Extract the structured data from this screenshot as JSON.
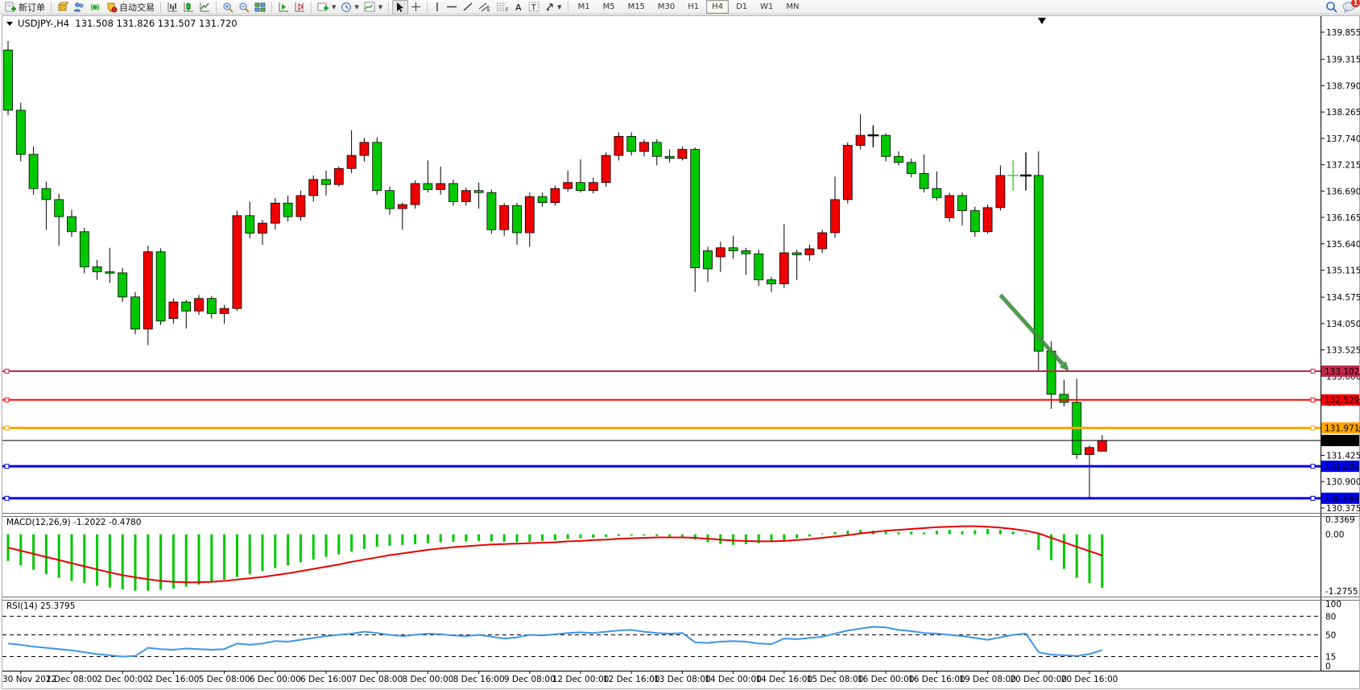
{
  "toolbar": {
    "new_order_label": "新订单",
    "autotrading_label": "自动交易",
    "timeframes": [
      "M1",
      "M5",
      "M15",
      "M30",
      "H1",
      "H4",
      "D1",
      "W1",
      "MN"
    ],
    "active_timeframe": "H4",
    "notification_count": "1"
  },
  "chart": {
    "title_symbol": "USDJPY-,H4",
    "title_ohlc": "131.508 131.826 131.507 131.720"
  },
  "chart_data": {
    "type": "candlestick",
    "symbol": "USDJPY",
    "timeframe": "H4",
    "color_convention": "green=down red=up",
    "ylim_main": [
      130.375,
      139.855
    ],
    "grid": false,
    "x_labels": [
      "30 Nov 2022",
      "1 Dec 08:00",
      "2 Dec 00:00",
      "2 Dec 16:00",
      "5 Dec 08:00",
      "6 Dec 00:00",
      "6 Dec 16:00",
      "7 Dec 08:00",
      "8 Dec 00:00",
      "8 Dec 16:00",
      "9 Dec 08:00",
      "12 Dec 00:00",
      "12 Dec 16:00",
      "13 Dec 08:00",
      "14 Dec 00:00",
      "14 Dec 16:00",
      "15 Dec 08:00",
      "16 Dec 00:00",
      "16 Dec 16:00",
      "19 Dec 08:00",
      "20 Dec 00:00",
      "20 Dec 16:00"
    ],
    "price_axis_ticks": [
      139.855,
      139.315,
      138.79,
      138.265,
      137.74,
      137.215,
      136.69,
      136.165,
      135.64,
      135.115,
      134.575,
      134.05,
      133.525,
      133.0,
      132.475,
      131.95,
      131.425,
      130.9,
      130.375
    ],
    "candles": [
      [
        139.5,
        139.68,
        138.2,
        138.3
      ],
      [
        138.3,
        138.45,
        137.28,
        137.42
      ],
      [
        137.42,
        137.58,
        136.62,
        136.74
      ],
      [
        136.74,
        136.88,
        135.92,
        136.52
      ],
      [
        136.52,
        136.64,
        135.6,
        136.18
      ],
      [
        136.18,
        136.32,
        135.78,
        135.88
      ],
      [
        135.88,
        135.96,
        135.05,
        135.18
      ],
      [
        135.18,
        135.32,
        134.92,
        135.08
      ],
      [
        135.08,
        135.56,
        134.86,
        135.06
      ],
      [
        135.06,
        135.16,
        134.48,
        134.58
      ],
      [
        134.58,
        134.68,
        133.84,
        133.94
      ],
      [
        133.94,
        135.6,
        133.62,
        135.48
      ],
      [
        135.48,
        135.55,
        134.02,
        134.1
      ],
      [
        134.15,
        134.55,
        134.05,
        134.48
      ],
      [
        134.48,
        134.52,
        133.95,
        134.3
      ],
      [
        134.3,
        134.62,
        134.22,
        134.55
      ],
      [
        134.55,
        134.6,
        134.15,
        134.25
      ],
      [
        134.25,
        134.42,
        134.05,
        134.35
      ],
      [
        134.35,
        136.3,
        134.3,
        136.2
      ],
      [
        136.2,
        136.48,
        135.75,
        135.85
      ],
      [
        135.85,
        136.12,
        135.62,
        136.05
      ],
      [
        136.05,
        136.55,
        135.92,
        136.45
      ],
      [
        136.45,
        136.6,
        136.08,
        136.18
      ],
      [
        136.18,
        136.7,
        136.1,
        136.6
      ],
      [
        136.6,
        137.0,
        136.48,
        136.92
      ],
      [
        136.92,
        137.1,
        136.6,
        136.82
      ],
      [
        136.82,
        137.18,
        136.78,
        137.14
      ],
      [
        137.14,
        137.9,
        137.05,
        137.4
      ],
      [
        137.4,
        137.75,
        137.28,
        137.66
      ],
      [
        137.66,
        137.76,
        136.62,
        136.7
      ],
      [
        136.7,
        136.78,
        136.22,
        136.34
      ],
      [
        136.34,
        136.46,
        135.92,
        136.42
      ],
      [
        136.42,
        136.9,
        136.34,
        136.84
      ],
      [
        136.84,
        137.3,
        136.66,
        136.72
      ],
      [
        136.72,
        137.18,
        136.62,
        136.84
      ],
      [
        136.84,
        136.92,
        136.4,
        136.48
      ],
      [
        136.48,
        136.76,
        136.4,
        136.7
      ],
      [
        136.7,
        136.86,
        136.34,
        136.66
      ],
      [
        136.66,
        136.72,
        135.84,
        135.92
      ],
      [
        135.92,
        136.45,
        135.8,
        136.4
      ],
      [
        136.4,
        136.46,
        135.62,
        135.86
      ],
      [
        135.86,
        136.66,
        135.58,
        136.58
      ],
      [
        136.58,
        136.66,
        136.38,
        136.46
      ],
      [
        136.46,
        136.8,
        136.4,
        136.74
      ],
      [
        136.74,
        137.1,
        136.68,
        136.86
      ],
      [
        136.86,
        137.32,
        136.66,
        136.7
      ],
      [
        136.7,
        136.96,
        136.64,
        136.86
      ],
      [
        136.86,
        137.46,
        136.78,
        137.4
      ],
      [
        137.4,
        137.86,
        137.3,
        137.78
      ],
      [
        137.78,
        137.86,
        137.4,
        137.48
      ],
      [
        137.48,
        137.72,
        137.38,
        137.66
      ],
      [
        137.66,
        137.72,
        137.2,
        137.38
      ],
      [
        137.38,
        137.52,
        137.26,
        137.34
      ],
      [
        137.34,
        137.58,
        137.3,
        137.52
      ],
      [
        137.52,
        137.56,
        134.68,
        135.16
      ],
      [
        135.5,
        135.58,
        134.88,
        135.14
      ],
      [
        135.38,
        135.68,
        135.08,
        135.56
      ],
      [
        135.56,
        135.8,
        135.34,
        135.5
      ],
      [
        135.5,
        135.56,
        135.02,
        135.44
      ],
      [
        135.44,
        135.52,
        134.8,
        134.92
      ],
      [
        134.92,
        134.98,
        134.68,
        134.84
      ],
      [
        134.84,
        136.03,
        134.76,
        135.46
      ],
      [
        135.46,
        135.52,
        134.92,
        135.42
      ],
      [
        135.42,
        135.62,
        135.3,
        135.54
      ],
      [
        135.54,
        135.92,
        135.46,
        135.86
      ],
      [
        135.86,
        136.98,
        135.76,
        136.52
      ],
      [
        136.52,
        137.66,
        136.44,
        137.6
      ],
      [
        137.6,
        138.22,
        137.52,
        137.8
      ],
      [
        137.8,
        138.0,
        137.56,
        137.8,
        "db"
      ],
      [
        137.8,
        137.84,
        137.28,
        137.38
      ],
      [
        137.38,
        137.48,
        137.2,
        137.26
      ],
      [
        137.26,
        137.34,
        136.96,
        137.04
      ],
      [
        137.04,
        137.42,
        136.66,
        136.74
      ],
      [
        136.74,
        137.08,
        136.5,
        136.56
      ],
      [
        136.16,
        136.66,
        136.08,
        136.6
      ],
      [
        136.6,
        136.66,
        136.0,
        136.3
      ],
      [
        136.3,
        136.38,
        135.78,
        135.88
      ],
      [
        135.88,
        136.42,
        135.84,
        136.36
      ],
      [
        136.36,
        137.2,
        136.3,
        137.0
      ],
      [
        137.0,
        137.3,
        136.7,
        137.0,
        "dg"
      ],
      [
        137.0,
        137.46,
        136.7,
        137.0,
        "db"
      ],
      [
        137.0,
        137.48,
        133.09,
        133.5
      ],
      [
        133.5,
        133.7,
        132.35,
        132.64
      ],
      [
        132.64,
        132.93,
        132.4,
        132.48
      ],
      [
        132.48,
        132.95,
        131.35,
        131.44
      ],
      [
        131.44,
        131.62,
        130.56,
        131.58
      ],
      [
        131.508,
        131.826,
        131.507,
        131.72
      ]
    ],
    "price_lines": [
      {
        "price": 133.102,
        "label": "133.102",
        "color": "#C2274B",
        "width": 2,
        "handles": true
      },
      {
        "price": 132.529,
        "label": "132.529",
        "color": "#F40000",
        "width": 2,
        "handles": true
      },
      {
        "price": 131.971,
        "label": "131.971",
        "color": "#FFA500",
        "width": 3,
        "handles": true
      },
      {
        "price": 131.72,
        "label": "131.720",
        "color": "#000000",
        "width": 1,
        "handles": false
      },
      {
        "price": 131.206,
        "label": "131.206",
        "color": "#0000E8",
        "width": 3,
        "handles": true
      },
      {
        "price": 130.569,
        "label": "130.569",
        "color": "#0000E8",
        "width": 3,
        "handles": true
      }
    ],
    "arrow_annotation": {
      "from": {
        "bar": 78.0,
        "price": 134.62
      },
      "to": {
        "bar": 83.4,
        "price": 133.1
      },
      "color": "#3F8F3F"
    },
    "macd": {
      "label": "MACD(12,26,9)",
      "values_label": "-1.2022 -0.4780",
      "axis_labels": [
        0.3369,
        0.0,
        -1.2755
      ],
      "histogram": [
        -0.6,
        -0.7,
        -0.8,
        -0.9,
        -0.98,
        -1.05,
        -1.1,
        -1.16,
        -1.2,
        -1.24,
        -1.27,
        -1.27,
        -1.25,
        -1.22,
        -1.18,
        -1.13,
        -1.08,
        -1.02,
        -0.96,
        -0.9,
        -0.83,
        -0.76,
        -0.7,
        -0.63,
        -0.57,
        -0.51,
        -0.45,
        -0.39,
        -0.33,
        -0.28,
        -0.26,
        -0.24,
        -0.22,
        -0.2,
        -0.18,
        -0.17,
        -0.16,
        -0.15,
        -0.16,
        -0.17,
        -0.18,
        -0.17,
        -0.15,
        -0.13,
        -0.11,
        -0.09,
        -0.08,
        -0.06,
        -0.04,
        -0.03,
        -0.03,
        -0.04,
        -0.05,
        -0.06,
        -0.12,
        -0.18,
        -0.22,
        -0.24,
        -0.22,
        -0.2,
        -0.17,
        -0.13,
        -0.09,
        -0.05,
        0.02,
        0.05,
        0.08,
        0.1,
        0.08,
        0.06,
        0.05,
        0.06,
        0.04,
        0.08,
        0.1,
        0.07,
        0.09,
        0.12,
        0.1,
        0.06,
        0.02,
        -0.35,
        -0.58,
        -0.78,
        -0.98,
        -1.1,
        -1.2022
      ],
      "signal": [
        -0.3,
        -0.37,
        -0.44,
        -0.51,
        -0.58,
        -0.65,
        -0.72,
        -0.79,
        -0.86,
        -0.92,
        -0.97,
        -1.01,
        -1.05,
        -1.07,
        -1.08,
        -1.08,
        -1.07,
        -1.05,
        -1.02,
        -0.99,
        -0.96,
        -0.92,
        -0.88,
        -0.83,
        -0.78,
        -0.73,
        -0.68,
        -0.62,
        -0.57,
        -0.52,
        -0.47,
        -0.43,
        -0.39,
        -0.35,
        -0.32,
        -0.29,
        -0.27,
        -0.25,
        -0.23,
        -0.22,
        -0.21,
        -0.2,
        -0.19,
        -0.18,
        -0.16,
        -0.15,
        -0.13,
        -0.12,
        -0.1,
        -0.09,
        -0.08,
        -0.07,
        -0.07,
        -0.07,
        -0.08,
        -0.1,
        -0.12,
        -0.14,
        -0.15,
        -0.16,
        -0.16,
        -0.15,
        -0.13,
        -0.11,
        -0.08,
        -0.05,
        -0.02,
        0.02,
        0.05,
        0.08,
        0.1,
        0.12,
        0.14,
        0.16,
        0.17,
        0.18,
        0.18,
        0.17,
        0.15,
        0.12,
        0.08,
        0.02,
        -0.08,
        -0.18,
        -0.28,
        -0.38,
        -0.478
      ]
    },
    "rsi": {
      "label": "RSI(14)",
      "value_label": "25.3795",
      "axis_labels": [
        100,
        80,
        50,
        15,
        0
      ],
      "levels": [
        80,
        50,
        15
      ],
      "values": [
        36,
        34,
        31,
        29,
        27,
        25,
        22,
        19,
        17,
        15,
        16,
        29,
        27,
        26,
        28,
        27,
        26,
        27,
        36,
        34,
        36,
        40,
        39,
        42,
        45,
        48,
        50,
        52,
        55,
        53,
        50,
        48,
        50,
        52,
        51,
        49,
        48,
        50,
        47,
        44,
        46,
        50,
        49,
        51,
        53,
        54,
        53,
        55,
        57,
        58,
        55,
        53,
        52,
        53,
        38,
        37,
        39,
        40,
        39,
        36,
        35,
        44,
        43,
        45,
        47,
        52,
        57,
        60,
        63,
        62,
        58,
        56,
        53,
        52,
        50,
        48,
        45,
        42,
        46,
        50,
        52,
        22,
        18,
        17,
        16,
        19,
        25.4
      ]
    }
  }
}
